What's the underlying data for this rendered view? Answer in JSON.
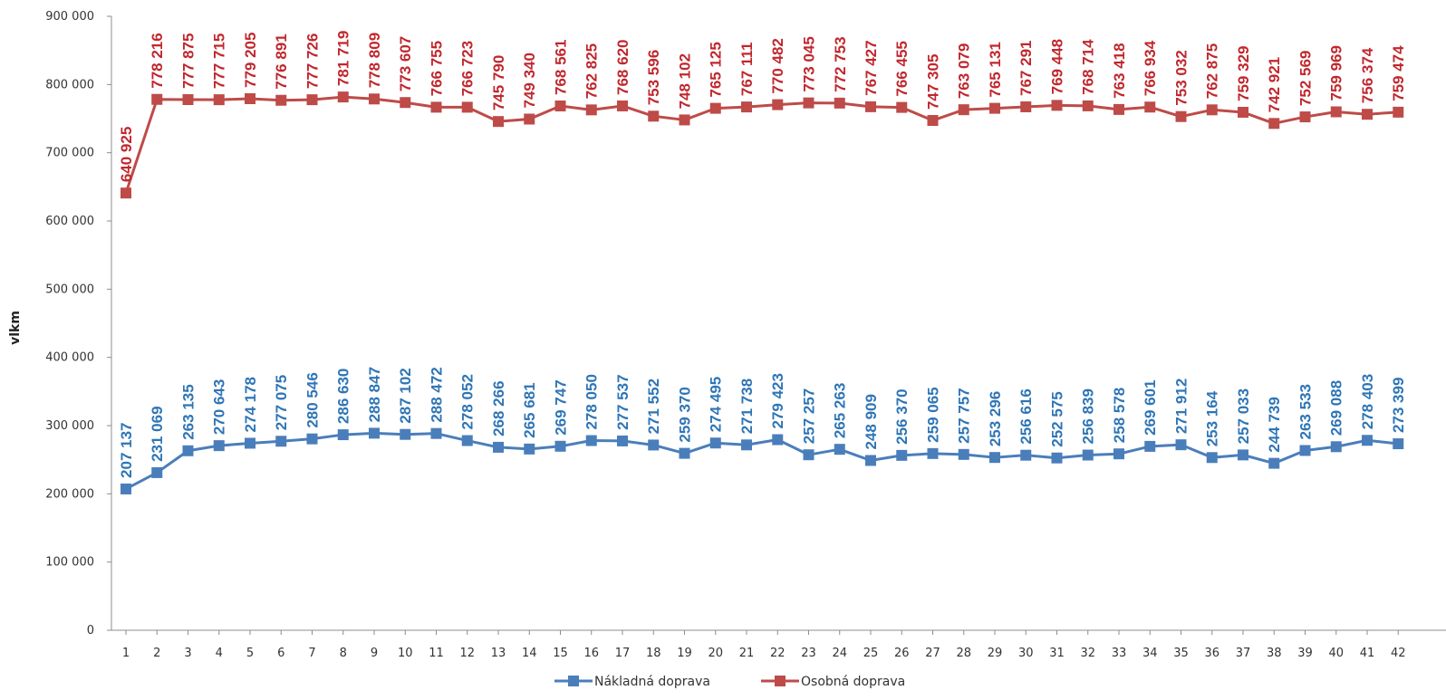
{
  "chart_data": {
    "type": "line",
    "ylabel": "vlkm",
    "xlabel": "",
    "ylim": [
      0,
      900000
    ],
    "yticks": [
      "0",
      "100 000",
      "200 000",
      "300 000",
      "400 000",
      "500 000",
      "600 000",
      "700 000",
      "800 000",
      "900 000"
    ],
    "categories": [
      "1",
      "2",
      "3",
      "4",
      "5",
      "6",
      "7",
      "8",
      "9",
      "10",
      "11",
      "12",
      "13",
      "14",
      "15",
      "16",
      "17",
      "18",
      "19",
      "20",
      "21",
      "22",
      "23",
      "24",
      "25",
      "26",
      "27",
      "28",
      "29",
      "30",
      "31",
      "32",
      "33",
      "34",
      "35",
      "36",
      "37",
      "38",
      "39",
      "40",
      "41",
      "42"
    ],
    "grid": false,
    "legend_position": "bottom",
    "series": [
      {
        "name": "Nákladná doprava",
        "color": "#4a7ebb",
        "label_color": "#2e75b6",
        "marker": "square",
        "values": [
          207137,
          231069,
          263135,
          270643,
          274178,
          277075,
          280546,
          286630,
          288847,
          287102,
          288472,
          278052,
          268266,
          265681,
          269747,
          278050,
          277537,
          271552,
          259370,
          274495,
          271738,
          279423,
          257257,
          265263,
          248909,
          256370,
          259065,
          257757,
          253296,
          256616,
          252575,
          256839,
          258578,
          269601,
          271912,
          253164,
          257033,
          244739,
          263533,
          269088,
          278403,
          273399
        ],
        "labels": [
          "207 137",
          "231 069",
          "263 135",
          "270 643",
          "274 178",
          "277 075",
          "280 546",
          "286 630",
          "288 847",
          "287 102",
          "288 472",
          "278 052",
          "268 266",
          "265 681",
          "269 747",
          "278 050",
          "277 537",
          "271 552",
          "259 370",
          "274 495",
          "271 738",
          "279 423",
          "257 257",
          "265 263",
          "248 909",
          "256 370",
          "259 065",
          "257 757",
          "253 296",
          "256 616",
          "252 575",
          "256 839",
          "258 578",
          "269 601",
          "271 912",
          "253 164",
          "257 033",
          "244 739",
          "263 533",
          "269 088",
          "278 403",
          "273 399"
        ]
      },
      {
        "name": "Osobná doprava",
        "color": "#be4b48",
        "label_color": "#c0272d",
        "marker": "square",
        "values": [
          640925,
          778216,
          777875,
          777715,
          779205,
          776891,
          777726,
          781719,
          778809,
          773607,
          766755,
          766723,
          745790,
          749340,
          768561,
          762825,
          768620,
          753596,
          748102,
          765125,
          767111,
          770482,
          773045,
          772753,
          767427,
          766455,
          747305,
          763079,
          765131,
          767291,
          769448,
          768714,
          763418,
          766934,
          753032,
          762875,
          759329,
          742921,
          752569,
          759969,
          756374,
          759474
        ],
        "labels": [
          "640 925",
          "778 216",
          "777 875",
          "777 715",
          "779 205",
          "776 891",
          "777 726",
          "781 719",
          "778 809",
          "773 607",
          "766 755",
          "766 723",
          "745 790",
          "749 340",
          "768 561",
          "762 825",
          "768 620",
          "753 596",
          "748 102",
          "765 125",
          "767 111",
          "770 482",
          "773 045",
          "772 753",
          "767 427",
          "766 455",
          "747 305",
          "763 079",
          "765 131",
          "767 291",
          "769 448",
          "768 714",
          "763 418",
          "766 934",
          "753 032",
          "762 875",
          "759 329",
          "742 921",
          "752 569",
          "759 969",
          "756 374",
          "759 474"
        ]
      }
    ]
  }
}
